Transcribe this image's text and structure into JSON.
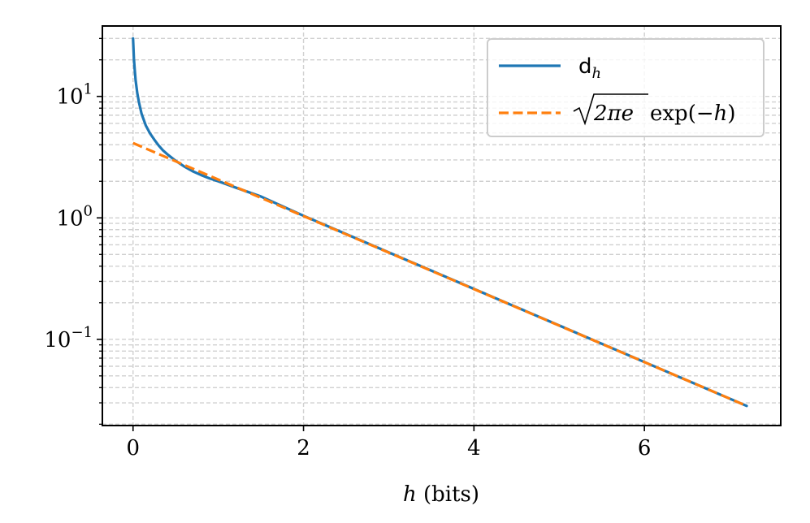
{
  "chart_data": {
    "type": "line",
    "xlabel": {
      "italic": "h",
      "rest": " (bits)"
    },
    "xlim": [
      -0.36,
      7.6
    ],
    "ylim": [
      0.0195,
      38
    ],
    "y_scale": "log",
    "grid": true,
    "grid_style": "dashed",
    "x_ticks": [
      {
        "value": 0,
        "label": "0"
      },
      {
        "value": 2,
        "label": "2"
      },
      {
        "value": 4,
        "label": "4"
      },
      {
        "value": 6,
        "label": "6"
      }
    ],
    "y_ticks": [
      {
        "value": 0.1,
        "base": "10",
        "exp": "−1"
      },
      {
        "value": 1,
        "base": "10",
        "exp": "0"
      },
      {
        "value": 10,
        "base": "10",
        "exp": "1"
      }
    ],
    "legend": {
      "location": "top-right",
      "entries": [
        {
          "series_index": 0,
          "main": "d",
          "sub": "h"
        },
        {
          "series_index": 1,
          "sqrt_arg": "2πe",
          "tail_a": " exp(−",
          "tail_h": "h",
          "tail_b": ")"
        }
      ]
    },
    "series": [
      {
        "color": "#1f77b4",
        "style": "solid",
        "x": [
          0.0,
          0.01,
          0.02,
          0.03,
          0.05,
          0.07,
          0.1,
          0.15,
          0.2,
          0.25,
          0.3,
          0.35,
          0.4,
          0.5,
          0.6,
          0.7,
          0.8,
          0.9,
          1.0,
          1.2,
          1.5,
          2.0,
          3.0,
          4.0,
          5.0,
          6.0,
          7.0,
          7.2
        ],
        "y": [
          30.0,
          20.5,
          16.5,
          13.6,
          10.6,
          8.9,
          7.2,
          5.75,
          4.95,
          4.4,
          3.95,
          3.6,
          3.35,
          2.95,
          2.65,
          2.42,
          2.25,
          2.11,
          2.0,
          1.78,
          1.5,
          1.04,
          0.52,
          0.26,
          0.13,
          0.065,
          0.0325,
          0.0283
        ]
      },
      {
        "color": "#ff7f0e",
        "style": "dashed",
        "x": [
          0.0,
          7.2
        ],
        "y": [
          4.13,
          0.0283
        ]
      }
    ]
  }
}
